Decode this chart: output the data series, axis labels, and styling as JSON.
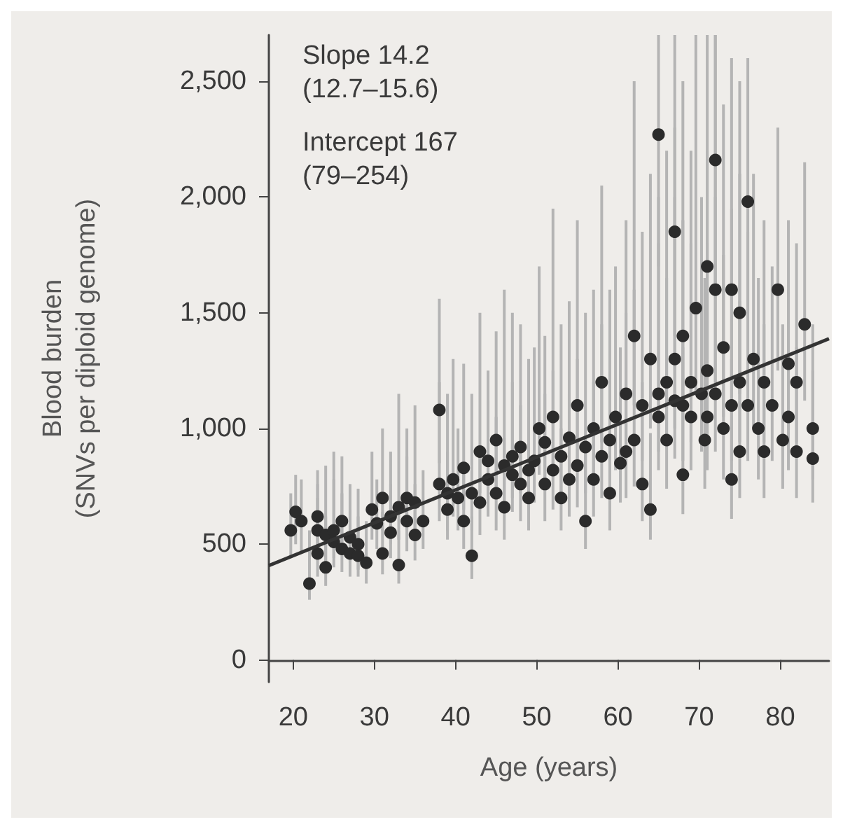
{
  "chart_data": {
    "type": "scatter",
    "xlabel": "Age (years)",
    "ylabel": "Blood burden\n(SNVs per diploid genome)",
    "annotations": [
      "Slope 14.2\n(12.7–15.6)",
      "Intercept 167\n(79–254)"
    ],
    "xlim": [
      17,
      86
    ],
    "xticks": [
      20,
      30,
      40,
      50,
      60,
      70,
      80
    ],
    "ylim": [
      -95,
      2700
    ],
    "yticks": [
      0,
      {
        "value": 500,
        "label": "500"
      },
      {
        "value": 1000,
        "label": "1,000"
      },
      {
        "value": 1500,
        "label": "1,500"
      },
      {
        "value": 2000,
        "label": "2,000"
      },
      {
        "value": 2500,
        "label": "2,500"
      }
    ],
    "grid": false,
    "marker": "circle",
    "series": [
      {
        "color": "#2b2b2b",
        "x": [
          19.7,
          20.3,
          21,
          22,
          23,
          23,
          23,
          24,
          24,
          25,
          25,
          26,
          26,
          27,
          27,
          28,
          28,
          29,
          29.7,
          30.3,
          31,
          31,
          32,
          32,
          33,
          33,
          34,
          34,
          35,
          35,
          36,
          38,
          38,
          39,
          39,
          39.7,
          40.3,
          41,
          41,
          42,
          42,
          43,
          43,
          44,
          44,
          45,
          45,
          46,
          46,
          47,
          47,
          48,
          48,
          49,
          49,
          49.7,
          50.3,
          51,
          51,
          52,
          52,
          53,
          53,
          54,
          54,
          55,
          55,
          56,
          56,
          57,
          57,
          58,
          58,
          59,
          59,
          59.7,
          60.3,
          61,
          61,
          62,
          62,
          63,
          63,
          64,
          64,
          65,
          65,
          65,
          66,
          66,
          67,
          67,
          67,
          68,
          68,
          68,
          69,
          69,
          69.6,
          70.3,
          70.7,
          71,
          71,
          71,
          72,
          72,
          72,
          73,
          73,
          74,
          74,
          74,
          75,
          75,
          75,
          76,
          76,
          76.7,
          77.3,
          78,
          78,
          79,
          79.7,
          80.3,
          81,
          81,
          82,
          82,
          83,
          84,
          84
        ],
        "values": [
          560,
          640,
          600,
          330,
          460,
          560,
          620,
          540,
          400,
          510,
          560,
          480,
          600,
          530,
          460,
          500,
          450,
          420,
          650,
          590,
          460,
          700,
          620,
          550,
          660,
          410,
          600,
          700,
          540,
          680,
          600,
          1080,
          760,
          650,
          720,
          780,
          700,
          830,
          600,
          450,
          720,
          900,
          680,
          860,
          780,
          720,
          950,
          840,
          660,
          800,
          880,
          760,
          920,
          820,
          700,
          860,
          1000,
          760,
          940,
          820,
          1050,
          880,
          700,
          960,
          780,
          840,
          1100,
          600,
          920,
          1000,
          780,
          880,
          1200,
          950,
          720,
          1050,
          850,
          900,
          1150,
          1400,
          950,
          1100,
          760,
          1300,
          650,
          2270,
          1150,
          1050,
          1200,
          950,
          1850,
          1120,
          1300,
          1100,
          1400,
          800,
          1200,
          1050,
          1520,
          1150,
          950,
          1700,
          1250,
          1050,
          2160,
          1600,
          1150,
          1350,
          1000,
          1100,
          1600,
          780,
          1200,
          1500,
          900,
          1980,
          1100,
          1300,
          1000,
          1200,
          900,
          1100,
          1600,
          950,
          1280,
          1050,
          1200,
          900,
          1450,
          1000,
          870
        ],
        "errors": [
          [
            440,
            720
          ],
          [
            500,
            800
          ],
          [
            470,
            780
          ],
          [
            260,
            560
          ],
          [
            360,
            700
          ],
          [
            430,
            820
          ],
          [
            480,
            760
          ],
          [
            420,
            840
          ],
          [
            320,
            620
          ],
          [
            400,
            900
          ],
          [
            440,
            780
          ],
          [
            380,
            720
          ],
          [
            470,
            880
          ],
          [
            420,
            760
          ],
          [
            360,
            650
          ],
          [
            390,
            740
          ],
          [
            360,
            620
          ],
          [
            330,
            600
          ],
          [
            520,
            900
          ],
          [
            480,
            780
          ],
          [
            370,
            640
          ],
          [
            560,
            1000
          ],
          [
            500,
            900
          ],
          [
            440,
            760
          ],
          [
            520,
            1150
          ],
          [
            330,
            560
          ],
          [
            470,
            880
          ],
          [
            560,
            1000
          ],
          [
            430,
            760
          ],
          [
            540,
            1100
          ],
          [
            480,
            820
          ],
          [
            850,
            1560
          ],
          [
            600,
            1200
          ],
          [
            520,
            900
          ],
          [
            560,
            1150
          ],
          [
            620,
            1300
          ],
          [
            560,
            1000
          ],
          [
            650,
            1280
          ],
          [
            480,
            850
          ],
          [
            350,
            620
          ],
          [
            560,
            1150
          ],
          [
            720,
            1500
          ],
          [
            540,
            900
          ],
          [
            680,
            1250
          ],
          [
            620,
            1120
          ],
          [
            560,
            1050
          ],
          [
            750,
            1420
          ],
          [
            660,
            1600
          ],
          [
            520,
            960
          ],
          [
            640,
            1200
          ],
          [
            700,
            1500
          ],
          [
            600,
            1100
          ],
          [
            720,
            1450
          ],
          [
            650,
            1300
          ],
          [
            560,
            1050
          ],
          [
            680,
            1350
          ],
          [
            800,
            1700
          ],
          [
            600,
            1150
          ],
          [
            740,
            1400
          ],
          [
            650,
            1250
          ],
          [
            820,
            1950
          ],
          [
            700,
            1450
          ],
          [
            560,
            1000
          ],
          [
            760,
            1550
          ],
          [
            620,
            1150
          ],
          [
            660,
            1300
          ],
          [
            860,
            1900
          ],
          [
            480,
            900
          ],
          [
            720,
            1500
          ],
          [
            800,
            1600
          ],
          [
            620,
            1200
          ],
          [
            700,
            1450
          ],
          [
            940,
            2050
          ],
          [
            750,
            1600
          ],
          [
            560,
            1050
          ],
          [
            820,
            1700
          ],
          [
            680,
            1350
          ],
          [
            700,
            1500
          ],
          [
            900,
            1900
          ],
          [
            1100,
            2500
          ],
          [
            750,
            1600
          ],
          [
            860,
            1850
          ],
          [
            600,
            1200
          ],
          [
            1000,
            2100
          ],
          [
            520,
            980
          ],
          [
            1700,
            2700
          ],
          [
            900,
            2000
          ],
          [
            820,
            1800
          ],
          [
            940,
            2200
          ],
          [
            740,
            1650
          ],
          [
            1400,
            2700
          ],
          [
            870,
            2000
          ],
          [
            1000,
            2300
          ],
          [
            860,
            1900
          ],
          [
            1080,
            2500
          ],
          [
            630,
            1350
          ],
          [
            940,
            2200
          ],
          [
            820,
            1800
          ],
          [
            1150,
            2700
          ],
          [
            900,
            2000
          ],
          [
            740,
            1650
          ],
          [
            1300,
            2700
          ],
          [
            980,
            2200
          ],
          [
            820,
            1800
          ],
          [
            1600,
            2700
          ],
          [
            1200,
            2700
          ],
          [
            900,
            2000
          ],
          [
            1050,
            2400
          ],
          [
            780,
            1750
          ],
          [
            860,
            1950
          ],
          [
            1200,
            2600
          ],
          [
            610,
            1300
          ],
          [
            940,
            2100
          ],
          [
            1150,
            2500
          ],
          [
            700,
            1550
          ],
          [
            1500,
            2600
          ],
          [
            860,
            1850
          ],
          [
            1000,
            2100
          ],
          [
            780,
            1650
          ],
          [
            940,
            1900
          ],
          [
            700,
            1450
          ],
          [
            860,
            1700
          ],
          [
            1250,
            2300
          ],
          [
            740,
            1450
          ],
          [
            1000,
            1900
          ],
          [
            820,
            1600
          ],
          [
            940,
            1800
          ],
          [
            700,
            1350
          ],
          [
            1120,
            2150
          ],
          [
            780,
            1450
          ],
          [
            680,
            1250
          ]
        ]
      },
      {
        "type": "line",
        "color": "#333333",
        "marker": "none",
        "x": [
          17,
          86
        ],
        "values": [
          408,
          1388
        ]
      }
    ]
  }
}
